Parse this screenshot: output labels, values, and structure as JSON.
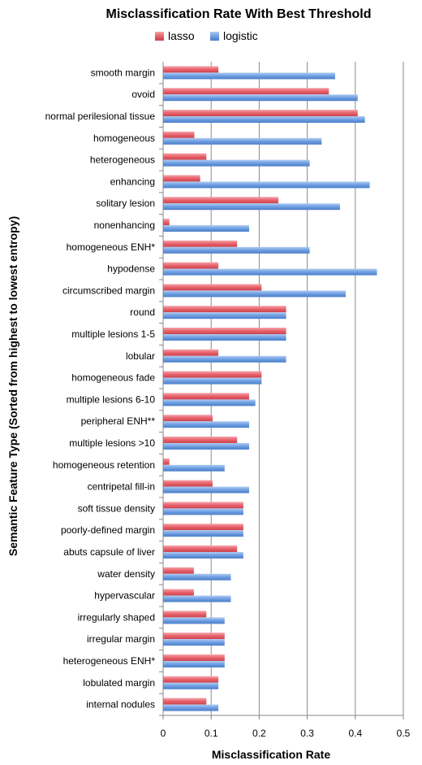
{
  "chart_data": {
    "type": "bar",
    "orientation": "horizontal",
    "title": "Misclassification Rate With Best Threshold",
    "xlabel": "Misclassification Rate",
    "ylabel": "Semantic Feature Type (Sorted from highest to lowest entropy)",
    "xlim": [
      0,
      0.5
    ],
    "xticks": [
      "0",
      "0.1",
      "0.2",
      "0.3",
      "0.4",
      "0.5"
    ],
    "grid": true,
    "legend": "top",
    "categories": [
      "smooth margin",
      "ovoid",
      "normal perilesional tissue",
      "homogeneous",
      "heterogeneous",
      "enhancing",
      "solitary lesion",
      "nonenhancing",
      "homogeneous ENH*",
      "hypodense",
      "circumscribed margin",
      "round",
      "multiple lesions 1-5",
      "lobular",
      "homogeneous fade",
      "multiple lesions 6-10",
      "peripheral ENH**",
      "multiple lesions >10",
      "homogeneous retention",
      "centripetal fill-in",
      "soft tissue density",
      "poorly-defined margin",
      "abuts capsule of liver",
      "water density",
      "hypervascular",
      "irregularly shaped",
      "irregular margin",
      "heterogeneous ENH*",
      "lobulated margin",
      "internal nodules"
    ],
    "series": [
      {
        "name": "lasso",
        "color": "#e8606a",
        "values": [
          0.115,
          0.345,
          0.405,
          0.065,
          0.09,
          0.077,
          0.24,
          0.013,
          0.154,
          0.115,
          0.205,
          0.256,
          0.256,
          0.115,
          0.205,
          0.179,
          0.103,
          0.154,
          0.013,
          0.103,
          0.167,
          0.167,
          0.154,
          0.064,
          0.064,
          0.09,
          0.128,
          0.128,
          0.115,
          0.09
        ]
      },
      {
        "name": "logistic",
        "color": "#6e9ee2",
        "values": [
          0.358,
          0.405,
          0.42,
          0.33,
          0.305,
          0.43,
          0.368,
          0.179,
          0.305,
          0.445,
          0.38,
          0.256,
          0.256,
          0.256,
          0.205,
          0.192,
          0.179,
          0.179,
          0.128,
          0.179,
          0.167,
          0.167,
          0.167,
          0.141,
          0.141,
          0.128,
          0.128,
          0.128,
          0.115,
          0.115
        ]
      }
    ]
  }
}
